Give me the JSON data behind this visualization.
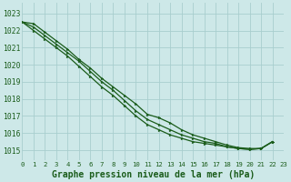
{
  "title": "Graphe pression niveau de la mer (hPa)",
  "bg_color": "#cde8e8",
  "grid_color": "#a8cece",
  "line_color": "#1a5c1a",
  "xlim": [
    0,
    23
  ],
  "ylim": [
    1014.4,
    1023.6
  ],
  "yticks": [
    1015,
    1016,
    1017,
    1018,
    1019,
    1020,
    1021,
    1022,
    1023
  ],
  "xticks": [
    0,
    1,
    2,
    3,
    4,
    5,
    6,
    7,
    8,
    9,
    10,
    11,
    12,
    13,
    14,
    15,
    16,
    17,
    18,
    19,
    20,
    21,
    22,
    23
  ],
  "series": [
    [
      1022.5,
      1022.4,
      1021.9,
      1021.4,
      1020.9,
      1020.3,
      1019.8,
      1019.2,
      1018.7,
      1018.2,
      1017.7,
      1017.1,
      1016.9,
      1016.6,
      1016.2,
      1015.9,
      1015.7,
      1015.5,
      1015.3,
      1015.15,
      1015.1,
      1015.1,
      1015.5
    ],
    [
      1022.5,
      1022.2,
      1021.7,
      1021.2,
      1020.7,
      1020.2,
      1019.6,
      1019.0,
      1018.5,
      1017.9,
      1017.3,
      1016.8,
      1016.5,
      1016.2,
      1015.9,
      1015.7,
      1015.5,
      1015.4,
      1015.2,
      1015.1,
      1015.05,
      1015.1,
      1015.5
    ],
    [
      1022.5,
      1022.0,
      1021.5,
      1021.0,
      1020.5,
      1019.9,
      1019.3,
      1018.7,
      1018.2,
      1017.6,
      1017.0,
      1016.5,
      1016.2,
      1015.9,
      1015.7,
      1015.5,
      1015.4,
      1015.3,
      1015.2,
      1015.1,
      1015.05,
      1015.1,
      1015.5
    ]
  ],
  "xlabel_fontsize": 7,
  "title_fontstyle": "bold",
  "ylabel_fontsize": 6,
  "xtick_fontsize": 5.2,
  "ytick_fontsize": 5.8
}
